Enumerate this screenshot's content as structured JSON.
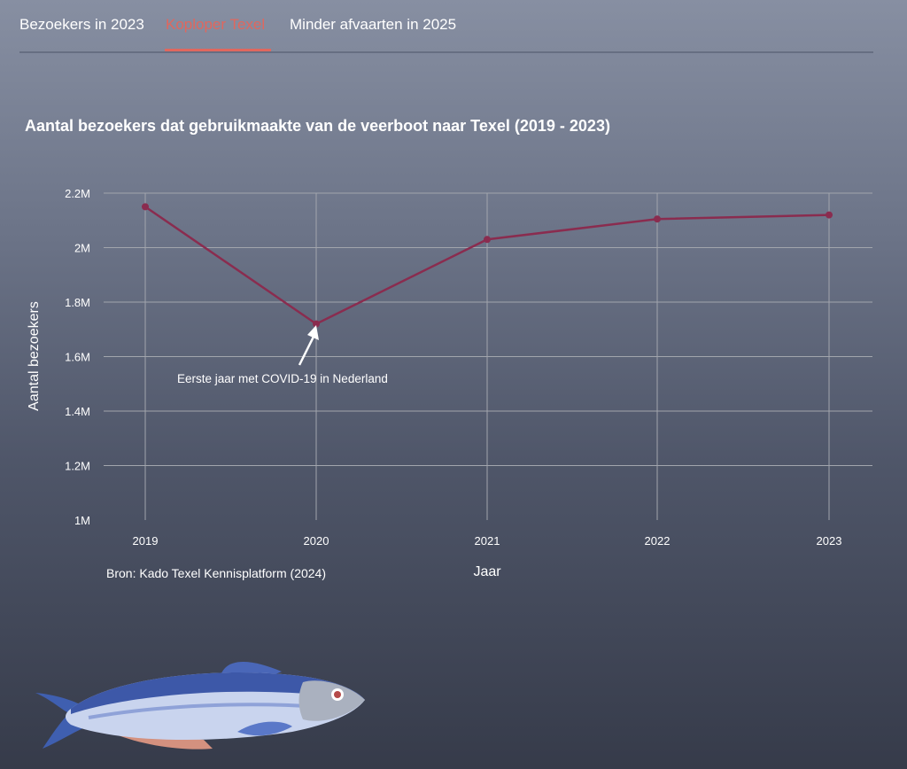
{
  "tabs": [
    {
      "label": "Bezoekers in 2023",
      "active": false
    },
    {
      "label": "Koploper Texel",
      "active": true
    },
    {
      "label": "Minder afvaarten in 2025",
      "active": false
    }
  ],
  "colors": {
    "accent": "#e0675e",
    "line": "#8a2c4f",
    "grid": "#a2a5ad"
  },
  "chart_data": {
    "type": "line",
    "title": "Aantal bezoekers dat gebruikmaakte van de veerboot naar Texel (2019 - 2023)",
    "xlabel": "Jaar",
    "ylabel": "Aantal bezoekers",
    "x": [
      "2019",
      "2020",
      "2021",
      "2022",
      "2023"
    ],
    "series": [
      {
        "values": [
          2150000,
          1720000,
          2030000,
          2105000,
          2120000
        ]
      }
    ],
    "ylim": [
      1000000,
      2200000
    ],
    "yticks": [
      1000000,
      1200000,
      1400000,
      1600000,
      1800000,
      2000000,
      2200000
    ],
    "ytick_labels": [
      "1M",
      "1.2M",
      "1.4M",
      "1.6M",
      "1.8M",
      "2M",
      "2.2M"
    ],
    "grid": true,
    "annotation": {
      "text": "Eerste jaar met COVID-19 in Nederland",
      "x": "2020"
    },
    "source": "Bron: Kado Texel Kennisplatform (2024)"
  },
  "decoration": {
    "icon": "fish-illustration"
  }
}
